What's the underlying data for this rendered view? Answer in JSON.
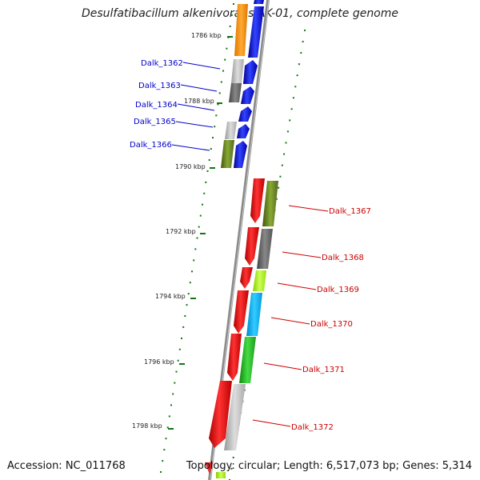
{
  "title": "Desulfatibacillum alkenivorans AK-01, complete genome",
  "footer": {
    "accession": "Accession: NC_011768",
    "topology": "Topology: circular; Length: 6,517,073 bp; Genes: 5,314"
  },
  "ticks": [
    "1786 kbp",
    "1788 kbp",
    "1790 kbp",
    "1792 kbp",
    "1794 kbp",
    "1796 kbp",
    "1798 kbp"
  ],
  "genes_left": [
    "Dalk_1362",
    "Dalk_1363",
    "Dalk_1364",
    "Dalk_1365",
    "Dalk_1366"
  ],
  "genes_right": [
    "Dalk_1367",
    "Dalk_1368",
    "Dalk_1369",
    "Dalk_1370",
    "Dalk_1371",
    "Dalk_1372"
  ],
  "colors": {
    "left_label": "#0000cc",
    "right_label": "#cc0000",
    "axis": "#888888",
    "tick": "#117711"
  }
}
